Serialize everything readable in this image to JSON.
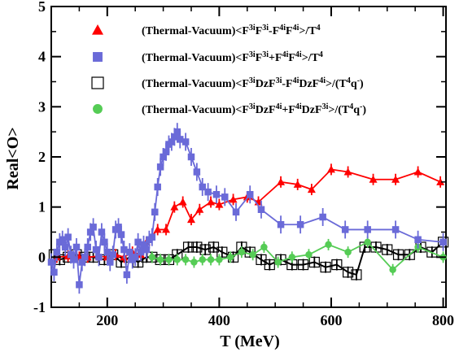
{
  "chart_data": {
    "type": "line",
    "xlabel": "T (MeV)",
    "ylabel": "Real<O>",
    "xlim": [
      100,
      805
    ],
    "ylim": [
      -1,
      5
    ],
    "xticks": [
      200,
      400,
      600,
      800
    ],
    "xtick_labels": [
      "200",
      "400",
      "600",
      "800"
    ],
    "yticks": [
      -1,
      0,
      1,
      2,
      3,
      4,
      5
    ],
    "ytick_labels": [
      "-1",
      "0",
      "1",
      "2",
      "3",
      "4",
      "5"
    ],
    "grid": false,
    "legend_position": "top",
    "series": [
      {
        "name": "(Thermal-Vacuum)<F3iF3i-F4iF4i>/T4",
        "label_parts": [
          [
            "(Thermal-Vacuum)<F",
            ""
          ],
          [
            "3i",
            "sup"
          ],
          [
            "F",
            ""
          ],
          [
            "3i",
            "sup"
          ],
          [
            "-F",
            ""
          ],
          [
            "4i",
            "sup"
          ],
          [
            "F",
            ""
          ],
          [
            "4i",
            "sup"
          ],
          [
            ">/T",
            ""
          ],
          [
            "4",
            "sup"
          ]
        ],
        "color": "#ff0000",
        "marker": "triangle",
        "x": [
          110,
          130,
          150,
          165,
          185,
          200,
          215,
          230,
          245,
          260,
          270,
          290,
          305,
          320,
          335,
          350,
          365,
          385,
          400,
          425,
          450,
          470,
          510,
          540,
          565,
          600,
          630,
          675,
          715,
          755,
          795
        ],
        "y": [
          0.0,
          0.02,
          0.0,
          0.0,
          0.02,
          0.0,
          0.05,
          0.0,
          0.1,
          0.05,
          0.3,
          0.55,
          0.55,
          1.0,
          1.1,
          0.75,
          0.95,
          1.1,
          1.05,
          1.15,
          1.2,
          1.1,
          1.5,
          1.45,
          1.35,
          1.75,
          1.7,
          1.55,
          1.55,
          1.7,
          1.5
        ]
      },
      {
        "name": "(Thermal-Vacuum)<F3iF3i+F4iF4i>/T4",
        "label_parts": [
          [
            "(Thermal-Vacuum)<F",
            ""
          ],
          [
            "3i",
            "sup"
          ],
          [
            "F",
            ""
          ],
          [
            "3i",
            "sup"
          ],
          [
            "+F",
            ""
          ],
          [
            "4i",
            "sup"
          ],
          [
            "F",
            ""
          ],
          [
            "4i",
            "sup"
          ],
          [
            ">/T",
            ""
          ],
          [
            "4",
            "sup"
          ]
        ],
        "color": "#6a6ad8",
        "marker": "square",
        "x": [
          100,
          105,
          110,
          115,
          120,
          125,
          130,
          135,
          140,
          145,
          150,
          155,
          160,
          165,
          170,
          175,
          180,
          185,
          190,
          195,
          200,
          205,
          210,
          215,
          220,
          225,
          230,
          235,
          240,
          245,
          250,
          255,
          260,
          265,
          270,
          275,
          280,
          285,
          290,
          295,
          300,
          305,
          310,
          315,
          320,
          325,
          330,
          340,
          350,
          360,
          370,
          380,
          395,
          410,
          430,
          455,
          475,
          510,
          545,
          585,
          625,
          665,
          715,
          755,
          800
        ],
        "y": [
          -0.1,
          -0.3,
          0.1,
          0.3,
          0.35,
          0.2,
          0.4,
          0.05,
          -0.05,
          0.2,
          -0.55,
          -0.1,
          0.0,
          0.2,
          0.5,
          0.6,
          0.15,
          0.0,
          0.5,
          0.3,
          0.1,
          -0.1,
          0.05,
          0.55,
          0.6,
          0.45,
          0.15,
          -0.35,
          0.1,
          -0.05,
          0.0,
          0.3,
          0.1,
          0.25,
          0.15,
          0.35,
          0.4,
          0.9,
          1.4,
          1.8,
          2.0,
          2.1,
          2.25,
          2.3,
          2.4,
          2.5,
          2.35,
          2.3,
          2.0,
          1.7,
          1.4,
          1.3,
          1.25,
          1.2,
          0.9,
          1.25,
          0.95,
          0.65,
          0.65,
          0.8,
          0.55,
          0.55,
          0.55,
          0.35,
          0.3
        ]
      },
      {
        "name": "(Thermal-Vacuum)<F3iDzF3i-F4iDzF4i>/(T4q-)",
        "label_parts": [
          [
            "(Thermal-Vacuum)<F",
            ""
          ],
          [
            "3i",
            "sup"
          ],
          [
            "DzF",
            ""
          ],
          [
            "3i",
            "sup"
          ],
          [
            "-F",
            ""
          ],
          [
            "4i",
            "sup"
          ],
          [
            "DzF",
            ""
          ],
          [
            "4i",
            "sup"
          ],
          [
            ">/(T",
            ""
          ],
          [
            "4",
            "sup"
          ],
          [
            "q",
            ""
          ],
          [
            "-",
            "sup"
          ],
          [
            ")",
            ""
          ]
        ],
        "color": "#000000",
        "marker": "open-square",
        "x": [
          105,
          115,
          130,
          145,
          160,
          175,
          195,
          210,
          225,
          240,
          255,
          270,
          280,
          295,
          310,
          325,
          345,
          360,
          375,
          390,
          405,
          425,
          440,
          455,
          475,
          490,
          510,
          530,
          550,
          570,
          590,
          610,
          630,
          645,
          660,
          680,
          700,
          720,
          740,
          760,
          780,
          800
        ],
        "y": [
          0.05,
          -0.05,
          0.0,
          0.05,
          0.0,
          0.0,
          -0.05,
          0.05,
          -0.1,
          0.0,
          -0.1,
          0.0,
          0.0,
          -0.05,
          -0.05,
          0.05,
          0.2,
          0.2,
          0.15,
          0.2,
          0.1,
          0.0,
          0.2,
          0.1,
          -0.05,
          -0.15,
          -0.05,
          -0.15,
          -0.15,
          -0.1,
          -0.2,
          -0.15,
          -0.3,
          -0.35,
          0.2,
          0.2,
          0.15,
          0.05,
          0.05,
          0.2,
          0.1,
          0.3
        ]
      },
      {
        "name": "(Thermal-Vacuum)<F3iDzF4i+F4iDzF3i>/(T4q-)",
        "label_parts": [
          [
            "(Thermal-Vacuum)<F",
            ""
          ],
          [
            "3i",
            "sup"
          ],
          [
            "DzF",
            ""
          ],
          [
            "4i",
            "sup"
          ],
          [
            "+F",
            ""
          ],
          [
            "4i",
            "sup"
          ],
          [
            "DzF",
            ""
          ],
          [
            "3i",
            "sup"
          ],
          [
            ">/(T",
            ""
          ],
          [
            "4",
            "sup"
          ],
          [
            "q",
            ""
          ],
          [
            "-",
            "sup"
          ],
          [
            ")",
            ""
          ]
        ],
        "color": "#55cc55",
        "marker": "circle",
        "x": [
          280,
          295,
          310,
          325,
          340,
          355,
          370,
          385,
          400,
          420,
          440,
          460,
          480,
          505,
          530,
          560,
          595,
          630,
          665,
          710,
          755,
          800
        ],
        "y": [
          0.0,
          -0.05,
          -0.05,
          -0.05,
          -0.05,
          -0.1,
          -0.05,
          -0.05,
          -0.05,
          0.0,
          0.1,
          0.05,
          0.2,
          -0.1,
          0.0,
          0.05,
          0.25,
          0.1,
          0.3,
          -0.25,
          0.2,
          0.0
        ]
      }
    ]
  }
}
